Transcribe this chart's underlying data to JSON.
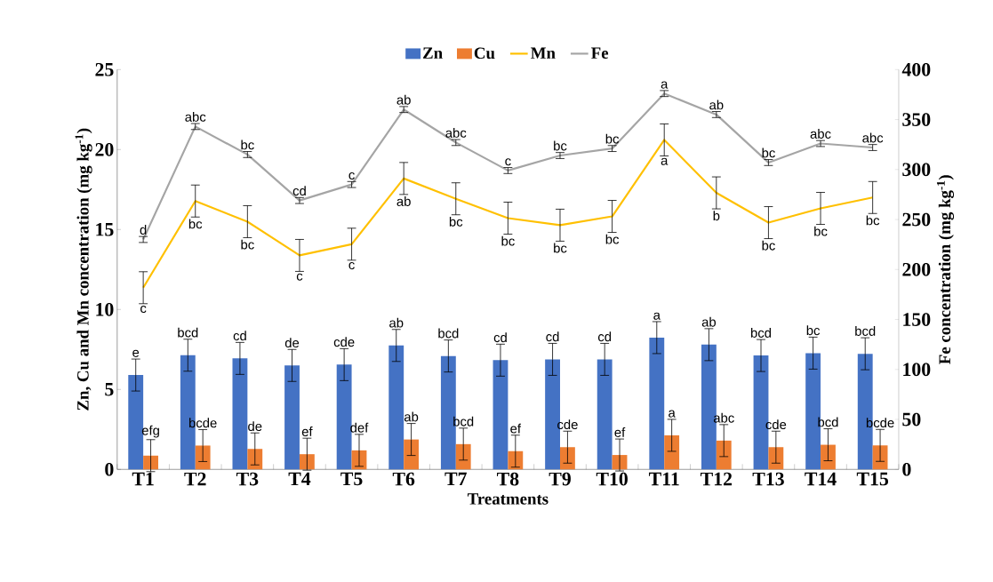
{
  "chart_data": {
    "type": "bar",
    "xlabel": "Treatments",
    "ylabel": "Zn, Cu and Mn concentration (mg kg$^{-1}$)",
    "y2label": "Fe concentration (mg kg$^{-1}$)",
    "categories": [
      "T1",
      "T2",
      "T3",
      "T4",
      "T5",
      "T6",
      "T7",
      "T8",
      "T9",
      "T10",
      "T11",
      "T12",
      "T13",
      "T14",
      "T15"
    ],
    "series": [
      {
        "name": "Zn",
        "color": "#4472c4",
        "values": [
          5.9,
          7.14,
          6.94,
          6.5,
          6.55,
          7.75,
          7.09,
          6.83,
          6.88,
          6.88,
          8.24,
          7.8,
          7.12,
          7.27,
          7.23
        ],
        "errors": [
          1,
          1,
          1,
          1,
          1,
          1,
          1,
          1,
          1,
          1,
          1,
          1,
          1,
          1,
          1
        ],
        "value_labels": [
          "e",
          "bcd",
          "cd",
          "de",
          "cde",
          "ab",
          "bcd",
          "cd",
          "cd",
          "cd",
          "a",
          "ab",
          "bcd",
          "bc",
          "bcd"
        ]
      },
      {
        "name": "Cu",
        "color": "#ed7d31",
        "values": [
          0.86,
          1.49,
          1.28,
          0.95,
          1.19,
          1.87,
          1.58,
          1.14,
          1.39,
          0.9,
          2.13,
          1.8,
          1.39,
          1.54,
          1.5
        ],
        "errors": [
          1,
          1,
          1,
          1,
          1,
          1,
          1,
          1,
          1,
          1,
          1,
          1,
          1,
          1,
          1
        ],
        "value_labels": [
          "efg",
          "bcde",
          "de",
          "ef",
          "def",
          "ab",
          "bcd",
          "ef",
          "cde",
          "ef",
          "a",
          "abc",
          "cde",
          "bcd",
          "bcde"
        ]
      },
      {
        "name": "Mn",
        "type": "line",
        "color": "#ffc000",
        "values": [
          11.36,
          16.78,
          15.49,
          13.38,
          14.08,
          18.19,
          16.92,
          15.71,
          15.27,
          15.82,
          20.6,
          17.29,
          15.43,
          16.32,
          17.0
        ],
        "errors": [
          1,
          1,
          1,
          1,
          1,
          1,
          1,
          1,
          1,
          1,
          1,
          1,
          1,
          1,
          1
        ],
        "value_labels": [
          "c",
          "bc",
          "bc",
          "c",
          "c",
          "ab",
          "bc",
          "bc",
          "bc",
          "bc",
          "a",
          "b",
          "bc",
          "bc",
          "bc"
        ]
      },
      {
        "name": "Fe",
        "type": "line",
        "axis": "y2",
        "color": "#a5a5a5",
        "values": [
          230,
          343,
          315,
          269,
          285,
          360,
          327,
          299,
          314,
          321,
          376,
          355,
          307,
          326,
          322
        ],
        "errors": [
          3,
          3,
          3,
          3,
          3,
          3,
          3,
          3,
          3,
          3,
          3,
          3,
          3,
          3,
          3
        ],
        "value_labels": [
          "d",
          "abc",
          "bc",
          "cd",
          "c",
          "ab",
          "abc",
          "c",
          "bc",
          "bc",
          "a",
          "ab",
          "bc",
          "abc",
          "abc"
        ]
      }
    ],
    "ylim": [
      0,
      25
    ],
    "yticks": [
      0,
      5,
      10,
      15,
      20,
      25
    ],
    "y2lim": [
      0,
      400
    ],
    "y2ticks": [
      0,
      50,
      100,
      150,
      200,
      250,
      300,
      350,
      400
    ],
    "legend": "top"
  }
}
